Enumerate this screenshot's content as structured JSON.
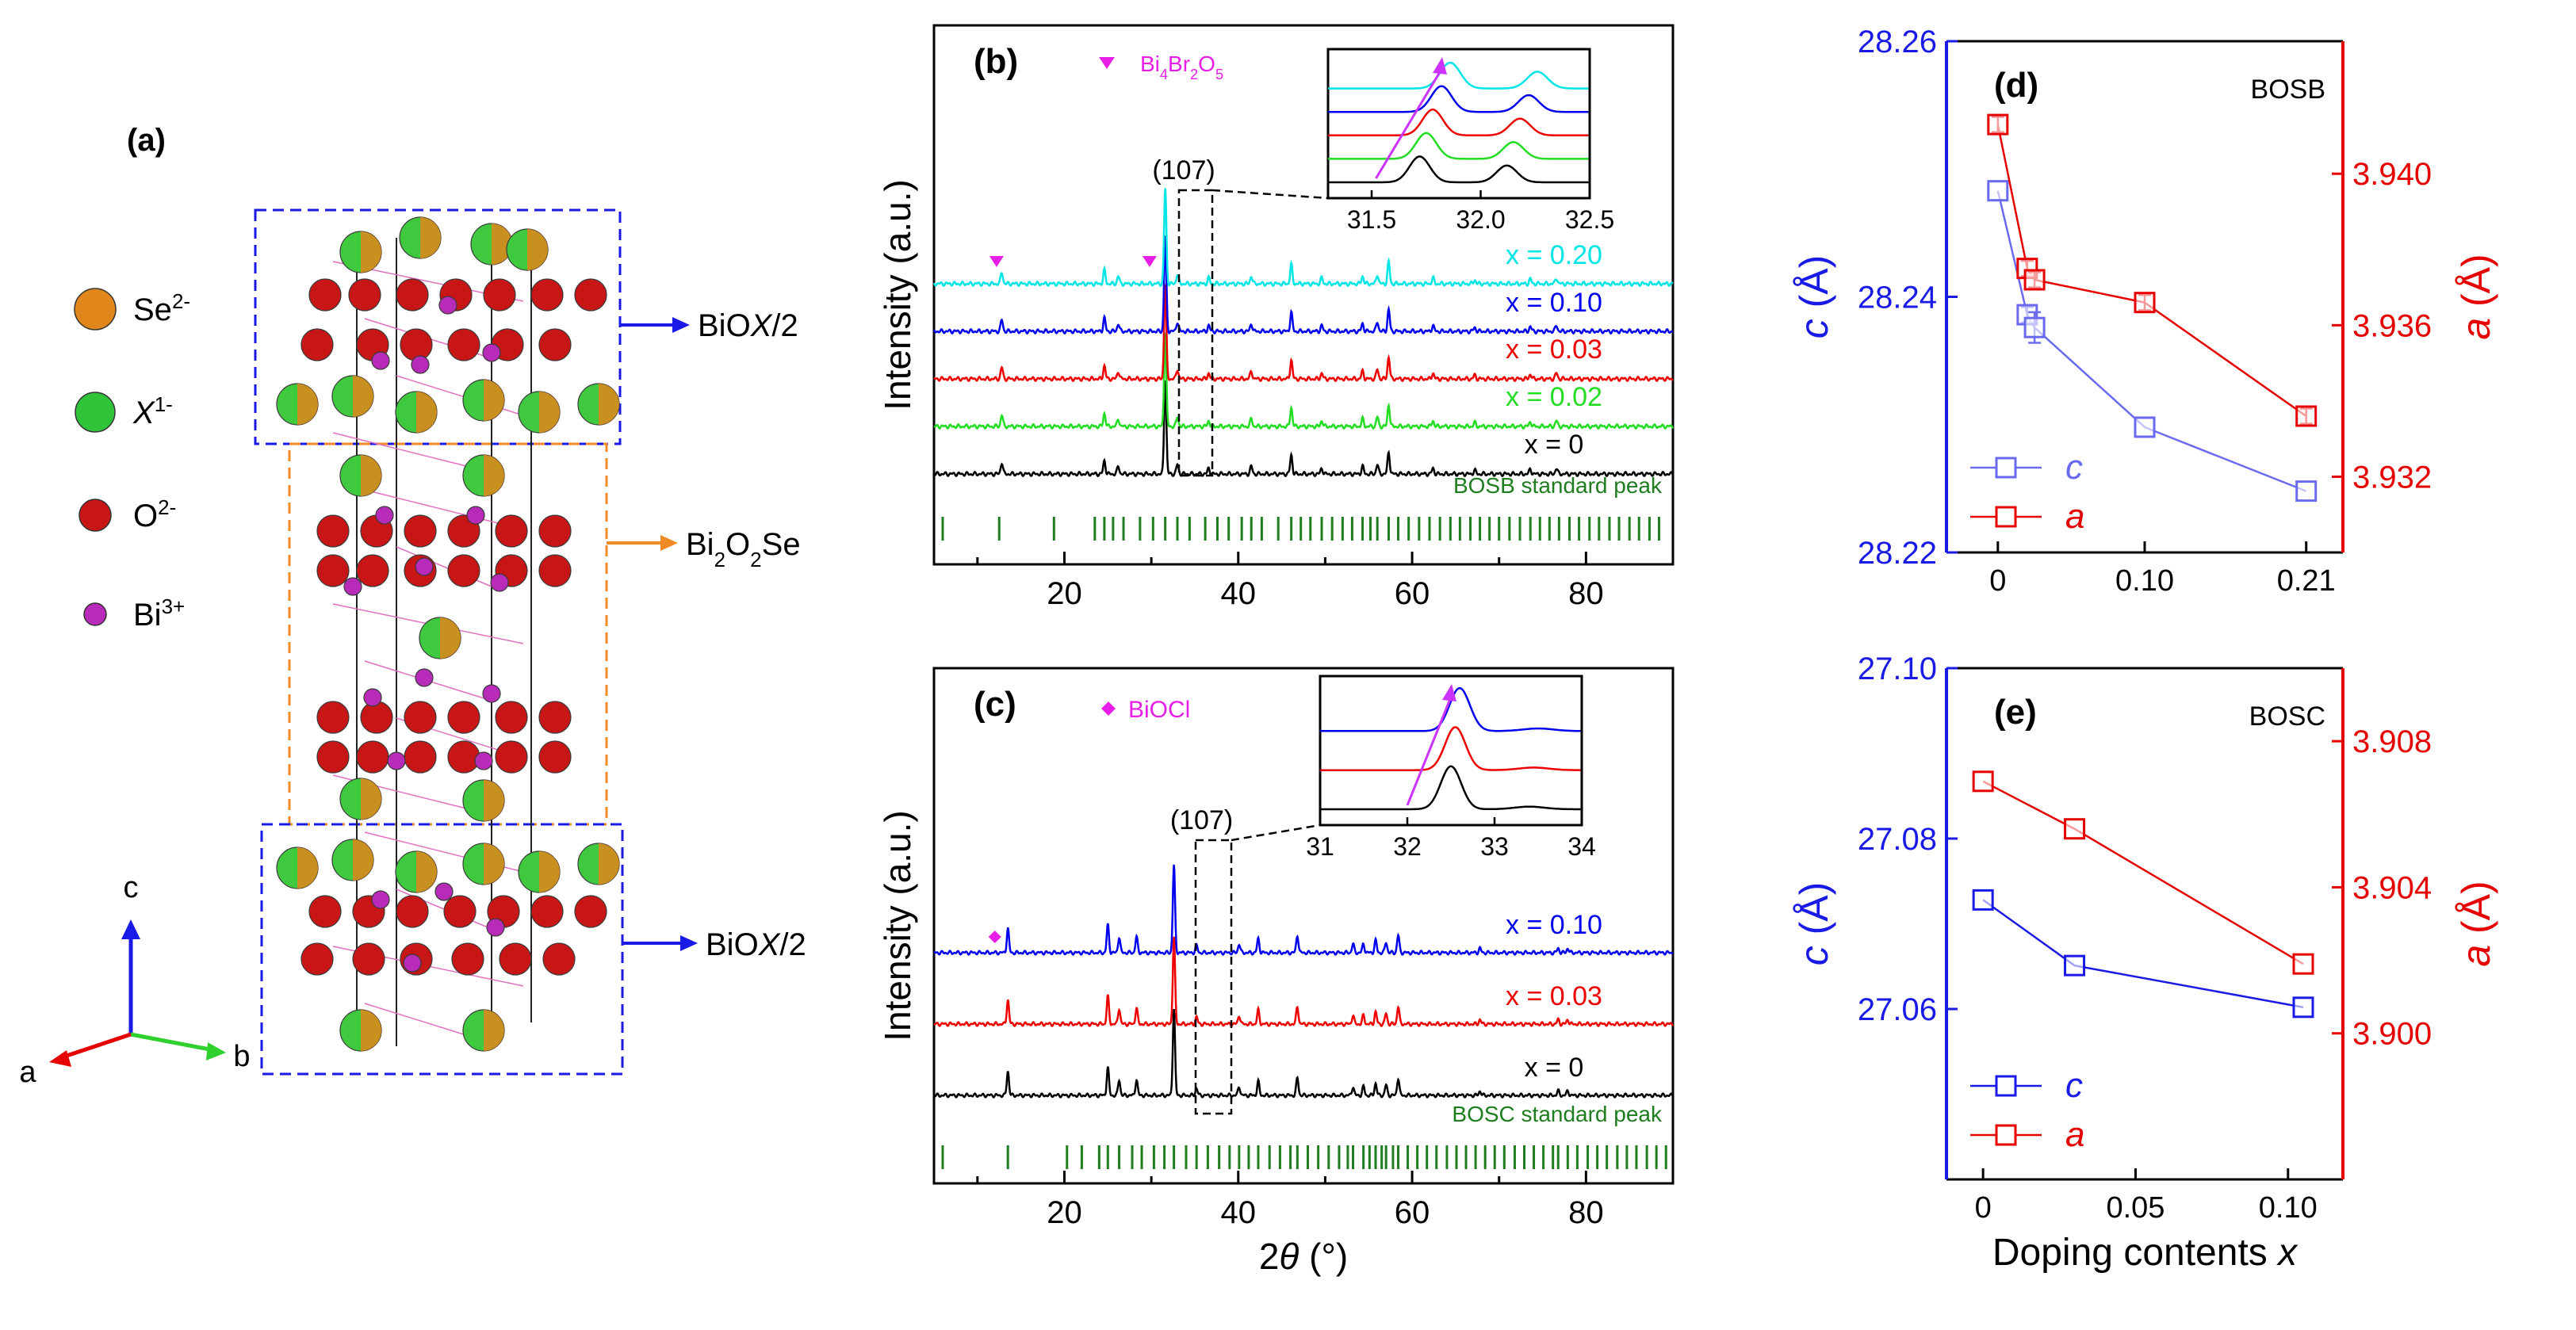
{
  "panel_a": {
    "label": "(a)",
    "legend": [
      {
        "symbol": "Se",
        "sup": "2-",
        "color": "#e0861a"
      },
      {
        "symbol": "X",
        "sup": "1-",
        "color": "#2fc43a",
        "italic": true
      },
      {
        "symbol": "O",
        "sup": "2-",
        "color": "#c81515"
      },
      {
        "symbol": "Bi",
        "sup": "3+",
        "color": "#b82ab8"
      }
    ],
    "block_labels": {
      "top": {
        "pre": "BiO",
        "italic": "X",
        "post": "/2"
      },
      "middle": {
        "pre": "Bi",
        "sub1": "2",
        "mid": "O",
        "sub2": "2",
        "post": "Se"
      },
      "bottom": {
        "pre": "BiO",
        "italic": "X",
        "post": "/2"
      }
    },
    "axes": {
      "c": "c",
      "a": "a",
      "b": "b"
    },
    "colors": {
      "blue_box": "#1a1ae6",
      "orange_box": "#f08a24"
    }
  },
  "chart_data": [
    {
      "id": "b",
      "type": "line",
      "label": "(b)",
      "ylabel": "Intensity (a.u.)",
      "xlim": [
        5,
        90
      ],
      "xticks": [
        20,
        40,
        60,
        80
      ],
      "impurity_legend": {
        "base": "Bi",
        "s1": "4",
        "mid1": "Br",
        "s2": "2",
        "mid2": "O",
        "s3": "5",
        "color": "#e61ee6"
      },
      "peak_box_label": "(107)",
      "series": [
        {
          "name": "x = 0",
          "color": "#000000"
        },
        {
          "name": "x = 0.02",
          "color": "#22dd22"
        },
        {
          "name": "x = 0.03",
          "color": "#ee0000"
        },
        {
          "name": "x = 0.10",
          "color": "#0000ee"
        },
        {
          "name": "x = 0.20",
          "color": "#00e5e5"
        }
      ],
      "peaks": [
        [
          12.8,
          0.12
        ],
        [
          24.6,
          0.14
        ],
        [
          26.2,
          0.08
        ],
        [
          31.6,
          1.0
        ],
        [
          33.0,
          0.1
        ],
        [
          36.6,
          0.06
        ],
        [
          41.5,
          0.08
        ],
        [
          46.1,
          0.2
        ],
        [
          49.6,
          0.06
        ],
        [
          54.3,
          0.08
        ],
        [
          56.0,
          0.1
        ],
        [
          57.3,
          0.23
        ],
        [
          62.4,
          0.06
        ],
        [
          67.2,
          0.04
        ],
        [
          73.6,
          0.05
        ],
        [
          76.6,
          0.06
        ]
      ],
      "impurity_marks_x": [
        12.2,
        29.8
      ],
      "standard_label": "BOSB standard peak",
      "standard_color": "#1e7d1e",
      "standard_lines": [
        6,
        12.5,
        18.8,
        23.5,
        24.6,
        25.6,
        26.8,
        28.7,
        30.2,
        31.6,
        33.0,
        34.4,
        36.2,
        37.6,
        38.9,
        40.4,
        41.5,
        42.7,
        44.6,
        46.1,
        47.2,
        48.3,
        49.6,
        50.8,
        52.0,
        53.1,
        54.3,
        55.2,
        56.0,
        57.3,
        58.4,
        59.6,
        60.8,
        62.0,
        63.2,
        64.4,
        65.5,
        66.7,
        67.8,
        68.9,
        70.0,
        71.2,
        72.4,
        73.6,
        74.7,
        75.8,
        76.9,
        78.1,
        79.2,
        80.4,
        81.5,
        82.7,
        83.8,
        85.0,
        86.1,
        87.3,
        88.4
      ],
      "inset": {
        "xlim": [
          31.3,
          32.5
        ],
        "xticks": [
          "31.5",
          "32.0",
          "32.5"
        ],
        "peak_centers": [
          31.72,
          31.75,
          31.78,
          31.82,
          31.86
        ],
        "arrow_color": "#cc33ff"
      }
    },
    {
      "id": "c",
      "type": "line",
      "label": "(c)",
      "ylabel": "Intensity (a.u.)",
      "xlabel_pre": "2",
      "xlabel_italic": "θ",
      "xlabel_post": " (°)",
      "xlim": [
        5,
        90
      ],
      "xticks": [
        20,
        40,
        60,
        80
      ],
      "impurity_legend": {
        "text": "BiOCl",
        "color": "#e61ee6"
      },
      "peak_box_label": "(107)",
      "series": [
        {
          "name": "x = 0",
          "color": "#000000"
        },
        {
          "name": "x = 0.03",
          "color": "#ee0000"
        },
        {
          "name": "x = 0.10",
          "color": "#0000ee"
        }
      ],
      "peaks": [
        [
          13.5,
          0.28
        ],
        [
          25.0,
          0.32
        ],
        [
          26.3,
          0.18
        ],
        [
          28.3,
          0.18
        ],
        [
          32.6,
          1.0
        ],
        [
          35.2,
          0.08
        ],
        [
          40.1,
          0.1
        ],
        [
          42.3,
          0.16
        ],
        [
          46.8,
          0.2
        ],
        [
          53.2,
          0.1
        ],
        [
          54.4,
          0.1
        ],
        [
          55.8,
          0.14
        ],
        [
          57.0,
          0.12
        ],
        [
          58.4,
          0.2
        ],
        [
          67.8,
          0.05
        ],
        [
          76.8,
          0.05
        ],
        [
          77.9,
          0.05
        ]
      ],
      "impurity_marks_x": [
        12.0
      ],
      "standard_label": "BOSC standard peak",
      "standard_color": "#1e7d1e",
      "standard_lines": [
        6,
        13.5,
        20.3,
        22.0,
        24.0,
        25.0,
        26.3,
        27.8,
        28.9,
        30.3,
        31.5,
        32.6,
        34.0,
        35.2,
        36.5,
        37.8,
        39.0,
        40.1,
        41.2,
        42.3,
        43.6,
        44.8,
        46.0,
        46.8,
        48.0,
        49.2,
        50.4,
        51.6,
        52.6,
        53.2,
        54.4,
        55.1,
        55.8,
        56.5,
        57.0,
        57.8,
        58.4,
        59.5,
        60.6,
        61.7,
        62.8,
        64.0,
        65.1,
        66.2,
        67.3,
        68.4,
        69.5,
        70.6,
        71.8,
        72.9,
        74.0,
        75.1,
        76.2,
        76.8,
        77.9,
        79.0,
        80.2,
        81.3,
        82.4,
        83.6,
        84.7,
        85.8,
        87.0,
        88.1,
        89.2
      ],
      "inset": {
        "xlim": [
          31,
          34
        ],
        "xticks": [
          "31",
          "32",
          "33",
          "34"
        ],
        "peak_centers": [
          32.5,
          32.55,
          32.6
        ],
        "arrow_color": "#cc33ff"
      }
    },
    {
      "id": "d",
      "type": "scatter",
      "label": "(d)",
      "sample": "BOSB",
      "xlim": [
        -0.035,
        0.235
      ],
      "xticks": [
        "0",
        "0.10",
        "0.21"
      ],
      "xtick_values": [
        0,
        0.1,
        0.21
      ],
      "left_axis": {
        "label_italic": "c",
        "label_post": " (Å)",
        "ylim": [
          28.22,
          28.26
        ],
        "ticks": [
          "28.22",
          "28.24",
          "28.26"
        ],
        "tick_values": [
          28.22,
          28.24,
          28.26
        ],
        "color": "#1a1ae6"
      },
      "right_axis": {
        "label_italic": "a",
        "label_post": " (Å)",
        "ylim": [
          3.93,
          3.9435
        ],
        "ticks": [
          "3.932",
          "3.936",
          "3.940"
        ],
        "tick_values": [
          3.932,
          3.936,
          3.94
        ],
        "color": "#e60000"
      },
      "series": [
        {
          "name": "c",
          "axis": "left",
          "color": "#6a6af0",
          "x": [
            0,
            0.02,
            0.025,
            0.1,
            0.21
          ],
          "y": [
            28.2483,
            28.2386,
            28.2376,
            28.2298,
            28.2248
          ],
          "err": [
            0,
            0.0006,
            0.0012,
            0,
            0
          ]
        },
        {
          "name": "a",
          "axis": "right",
          "color": "#e60000",
          "x": [
            0,
            0.02,
            0.025,
            0.1,
            0.21
          ],
          "y": [
            3.9413,
            3.9375,
            3.9372,
            3.9366,
            3.9336
          ],
          "err": [
            0.0002,
            0.0002,
            0.0002,
            0.0002,
            0.0002
          ]
        }
      ]
    },
    {
      "id": "e",
      "type": "scatter",
      "label": "(e)",
      "sample": "BOSC",
      "xlabel_pre": "Doping contents ",
      "xlabel_italic": "x",
      "xlim": [
        -0.012,
        0.118
      ],
      "xticks": [
        "0",
        "0.05",
        "0.10"
      ],
      "xtick_values": [
        0,
        0.05,
        0.1
      ],
      "left_axis": {
        "label_italic": "c",
        "label_post": " (Å)",
        "ylim": [
          27.04,
          27.1
        ],
        "ticks": [
          "27.06",
          "27.08",
          "27.10"
        ],
        "tick_values": [
          27.06,
          27.08,
          27.1
        ],
        "color": "#1a1ae6"
      },
      "right_axis": {
        "label_italic": "a",
        "label_post": " (Å)",
        "ylim": [
          3.896,
          3.91
        ],
        "ticks": [
          "3.900",
          "3.904",
          "3.908"
        ],
        "tick_values": [
          3.9,
          3.904,
          3.908
        ],
        "color": "#e60000"
      },
      "series": [
        {
          "name": "c",
          "axis": "left",
          "color": "#1a1ae6",
          "x": [
            0,
            0.03,
            0.105
          ],
          "y": [
            27.0728,
            27.0651,
            27.0602
          ]
        },
        {
          "name": "a",
          "axis": "right",
          "color": "#e60000",
          "x": [
            0,
            0.03,
            0.105
          ],
          "y": [
            3.9069,
            3.9056,
            3.9019
          ]
        }
      ]
    }
  ]
}
